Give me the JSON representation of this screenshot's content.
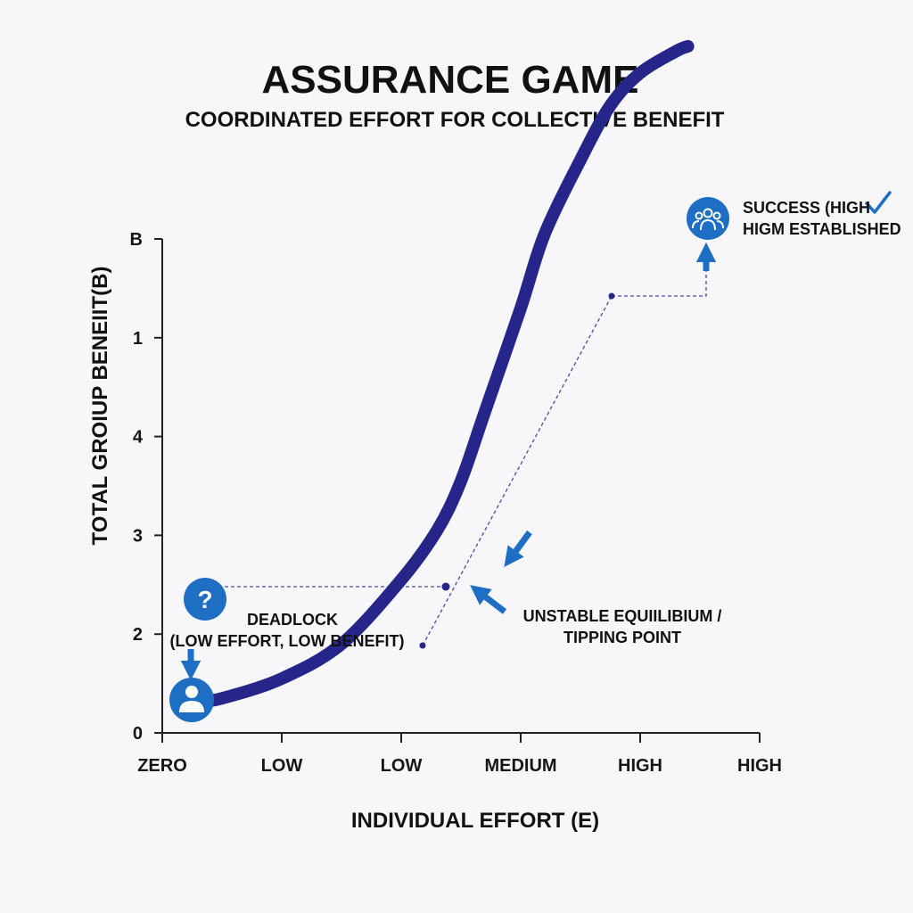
{
  "chart_data": {
    "type": "line",
    "title": "ASSURANCE GAME",
    "subtitle": "COORDINATED EFFORT FOR COLLECTIVE BENEFIT",
    "xlabel": "INDIVIDUAL EFFORT (E)",
    "ylabel": "TOTAL GROIUP BENEIIT(B)",
    "x_ticks": [
      "ZERO",
      "LOW",
      "LOW",
      "MEDIUM",
      "HIGH",
      "HIGH"
    ],
    "y_ticks": [
      "0",
      "2",
      "3",
      "4",
      "1",
      "B"
    ],
    "grid": false,
    "series": [
      {
        "x": [
          0.23,
          0.5,
          1.0,
          1.5,
          2.0,
          2.3,
          2.5,
          2.7,
          3.0,
          3.2,
          3.5,
          3.75,
          4.0,
          4.3,
          4.4
        ],
        "y": [
          0.3,
          0.35,
          0.55,
          0.9,
          1.55,
          2.05,
          2.55,
          3.25,
          4.3,
          5.05,
          5.8,
          6.35,
          6.68,
          6.9,
          6.95
        ]
      }
    ],
    "annotations": [
      {
        "label": "DEADLOCK",
        "detail": "(LOW EFFORT, LOW BENEFIT)",
        "x": 0.23,
        "y": 0.3
      },
      {
        "label": "UNSTABLE EQUIILIBIUM /",
        "detail": "TIPPING POINT",
        "x": 2.4,
        "y": 2.45
      },
      {
        "label": "SUCCESS (HIGH",
        "detail": "HIGM ESTABLISHED",
        "x": 4.4,
        "y": 6.95
      }
    ],
    "colors": {
      "curve": "#25258a",
      "accent": "#1e6fc4",
      "guide": "#4a4aa0",
      "text": "#161616",
      "axis": "#222222"
    }
  }
}
